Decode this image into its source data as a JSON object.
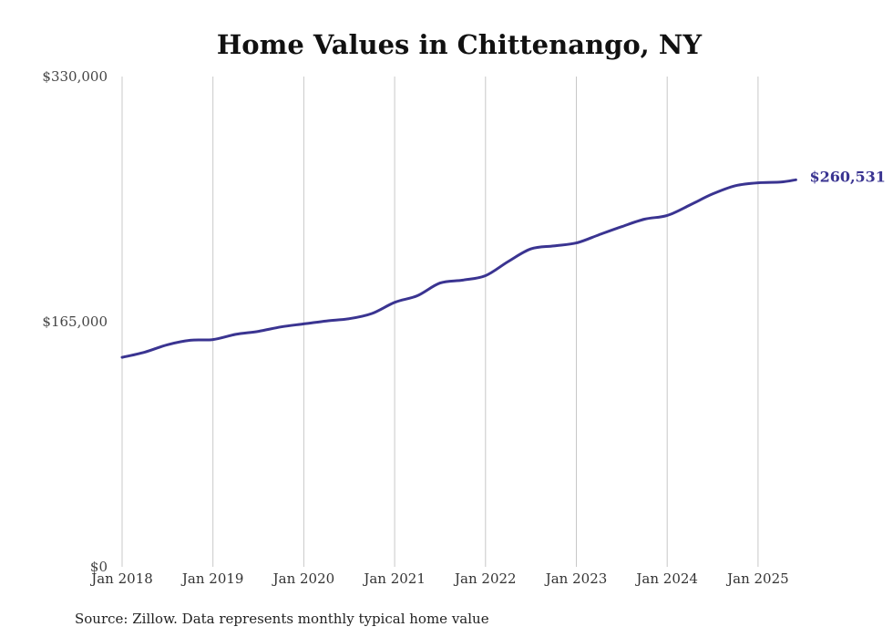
{
  "chart_data": {
    "type": "line",
    "title": "Home Values in Chittenango, NY",
    "source": "Source: Zillow. Data represents monthly typical home value",
    "ylim": [
      0,
      330000
    ],
    "yticks": [
      {
        "value": 0,
        "label": "$0"
      },
      {
        "value": 165000,
        "label": "$165,000"
      },
      {
        "value": 330000,
        "label": "$330,000"
      }
    ],
    "xticks": [
      {
        "value": "2018-01",
        "label": "Jan 2018"
      },
      {
        "value": "2019-01",
        "label": "Jan 2019"
      },
      {
        "value": "2020-01",
        "label": "Jan 2020"
      },
      {
        "value": "2021-01",
        "label": "Jan 2021"
      },
      {
        "value": "2022-01",
        "label": "Jan 2022"
      },
      {
        "value": "2023-01",
        "label": "Jan 2023"
      },
      {
        "value": "2024-01",
        "label": "Jan 2024"
      },
      {
        "value": "2025-01",
        "label": "Jan 2025"
      }
    ],
    "xlim": [
      "2018-01",
      "2025-06"
    ],
    "grid": "vertical",
    "line_color": "#3a3491",
    "end_label": "$260,531",
    "series": [
      {
        "x": [
          "2018-01",
          "2018-04",
          "2018-07",
          "2018-10",
          "2019-01",
          "2019-04",
          "2019-07",
          "2019-10",
          "2020-01",
          "2020-04",
          "2020-07",
          "2020-10",
          "2021-01",
          "2021-04",
          "2021-07",
          "2021-10",
          "2022-01",
          "2022-04",
          "2022-07",
          "2022-10",
          "2023-01",
          "2023-04",
          "2023-07",
          "2023-10",
          "2024-01",
          "2024-04",
          "2024-07",
          "2024-10",
          "2025-01",
          "2025-04",
          "2025-06"
        ],
        "values": [
          141000,
          144500,
          149500,
          152500,
          153000,
          156500,
          158500,
          161500,
          163500,
          165500,
          167000,
          170500,
          178000,
          182500,
          191000,
          193000,
          196000,
          205500,
          214000,
          216000,
          218000,
          223500,
          229000,
          234000,
          236500,
          243500,
          251000,
          256500,
          258500,
          259000,
          260531
        ]
      }
    ]
  }
}
